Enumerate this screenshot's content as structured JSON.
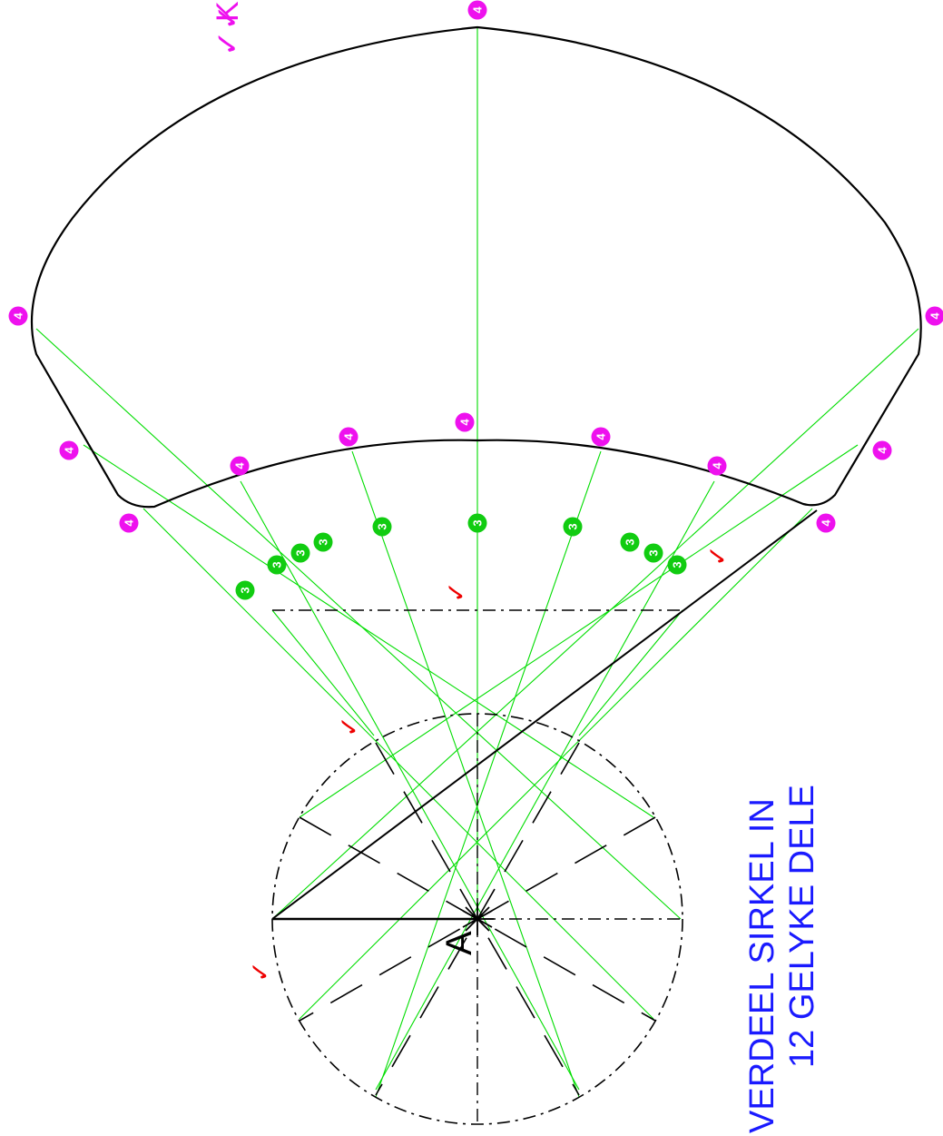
{
  "title": {
    "line1": "VERDEEL SIRKEL IN",
    "line2": "12 GELYKE DELE"
  },
  "point_label": "A",
  "corner_note": {
    "mark": "✓✓",
    "text": "K"
  },
  "check_mark": "✓",
  "markers": {
    "step3": "3",
    "step4": "4"
  },
  "colors": {
    "outline": "#000000",
    "construction": "#00dd00",
    "title": "#1a1aff",
    "step3_fill": "#11cc11",
    "step4_fill": "#ee11ee",
    "check": "#ee0000"
  }
}
